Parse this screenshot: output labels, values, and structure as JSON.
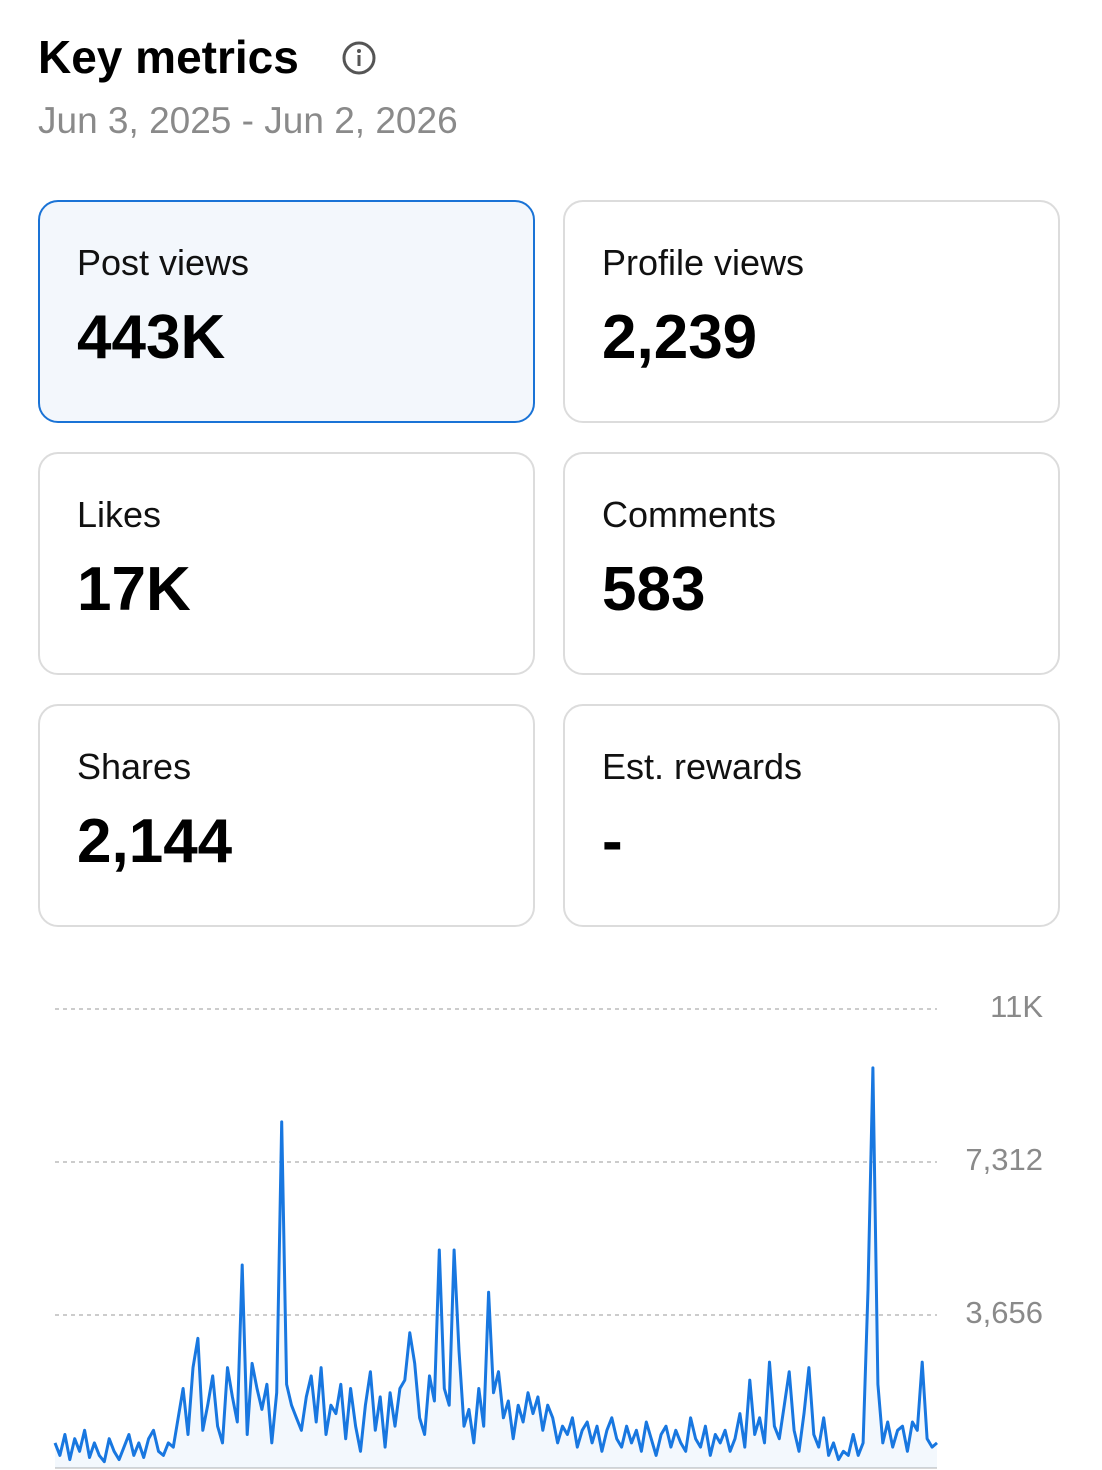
{
  "header": {
    "title": "Key metrics",
    "date_range": "Jun 3, 2025 - Jun 2, 2026"
  },
  "metrics": [
    {
      "label": "Post views",
      "value": "443K"
    },
    {
      "label": "Profile views",
      "value": "2,239"
    },
    {
      "label": "Likes",
      "value": "17K"
    },
    {
      "label": "Comments",
      "value": "583"
    },
    {
      "label": "Shares",
      "value": "2,144"
    },
    {
      "label": "Est. rewards",
      "value": "-"
    }
  ],
  "chart_data": {
    "type": "line",
    "color": "#1877e0",
    "ylim": [
      0,
      10968
    ],
    "yticks": [
      {
        "value": 3656,
        "label": "3,656"
      },
      {
        "value": 7312,
        "label": "7,312"
      },
      {
        "value": 10968,
        "label": "11K"
      }
    ],
    "grid": true,
    "values": [
      600,
      300,
      800,
      200,
      700,
      400,
      900,
      250,
      600,
      300,
      150,
      700,
      400,
      200,
      500,
      800,
      300,
      600,
      250,
      700,
      900,
      400,
      300,
      600,
      500,
      1200,
      1900,
      800,
      2400,
      3100,
      900,
      1500,
      2200,
      1000,
      600,
      2400,
      1700,
      1100,
      4850,
      800,
      2500,
      1900,
      1400,
      2000,
      600,
      1800,
      8270,
      2000,
      1500,
      1200,
      900,
      1700,
      2200,
      1100,
      2400,
      800,
      1500,
      1300,
      2000,
      700,
      1900,
      1000,
      400,
      1500,
      2300,
      900,
      1700,
      500,
      1800,
      1000,
      1900,
      2100,
      3230,
      2500,
      1200,
      800,
      2200,
      1600,
      5210,
      1900,
      1500,
      5210,
      2800,
      1000,
      1400,
      600,
      1900,
      1000,
      4200,
      1800,
      2300,
      1200,
      1600,
      700,
      1500,
      1100,
      1800,
      1300,
      1700,
      900,
      1500,
      1200,
      600,
      1000,
      800,
      1200,
      500,
      900,
      1100,
      600,
      1000,
      400,
      900,
      1200,
      700,
      500,
      1000,
      600,
      900,
      400,
      1100,
      700,
      300,
      800,
      1000,
      500,
      900,
      600,
      400,
      1200,
      700,
      500,
      1000,
      300,
      800,
      600,
      900,
      400,
      700,
      1300,
      500,
      2100,
      800,
      1200,
      600,
      2530,
      1000,
      700,
      1500,
      2300,
      900,
      400,
      1300,
      2400,
      800,
      500,
      1200,
      300,
      600,
      200,
      400,
      300,
      800,
      300,
      600,
      4250,
      9560,
      2000,
      600,
      1100,
      500,
      900,
      1000,
      400,
      1100,
      900,
      2530,
      700,
      500,
      600
    ]
  }
}
